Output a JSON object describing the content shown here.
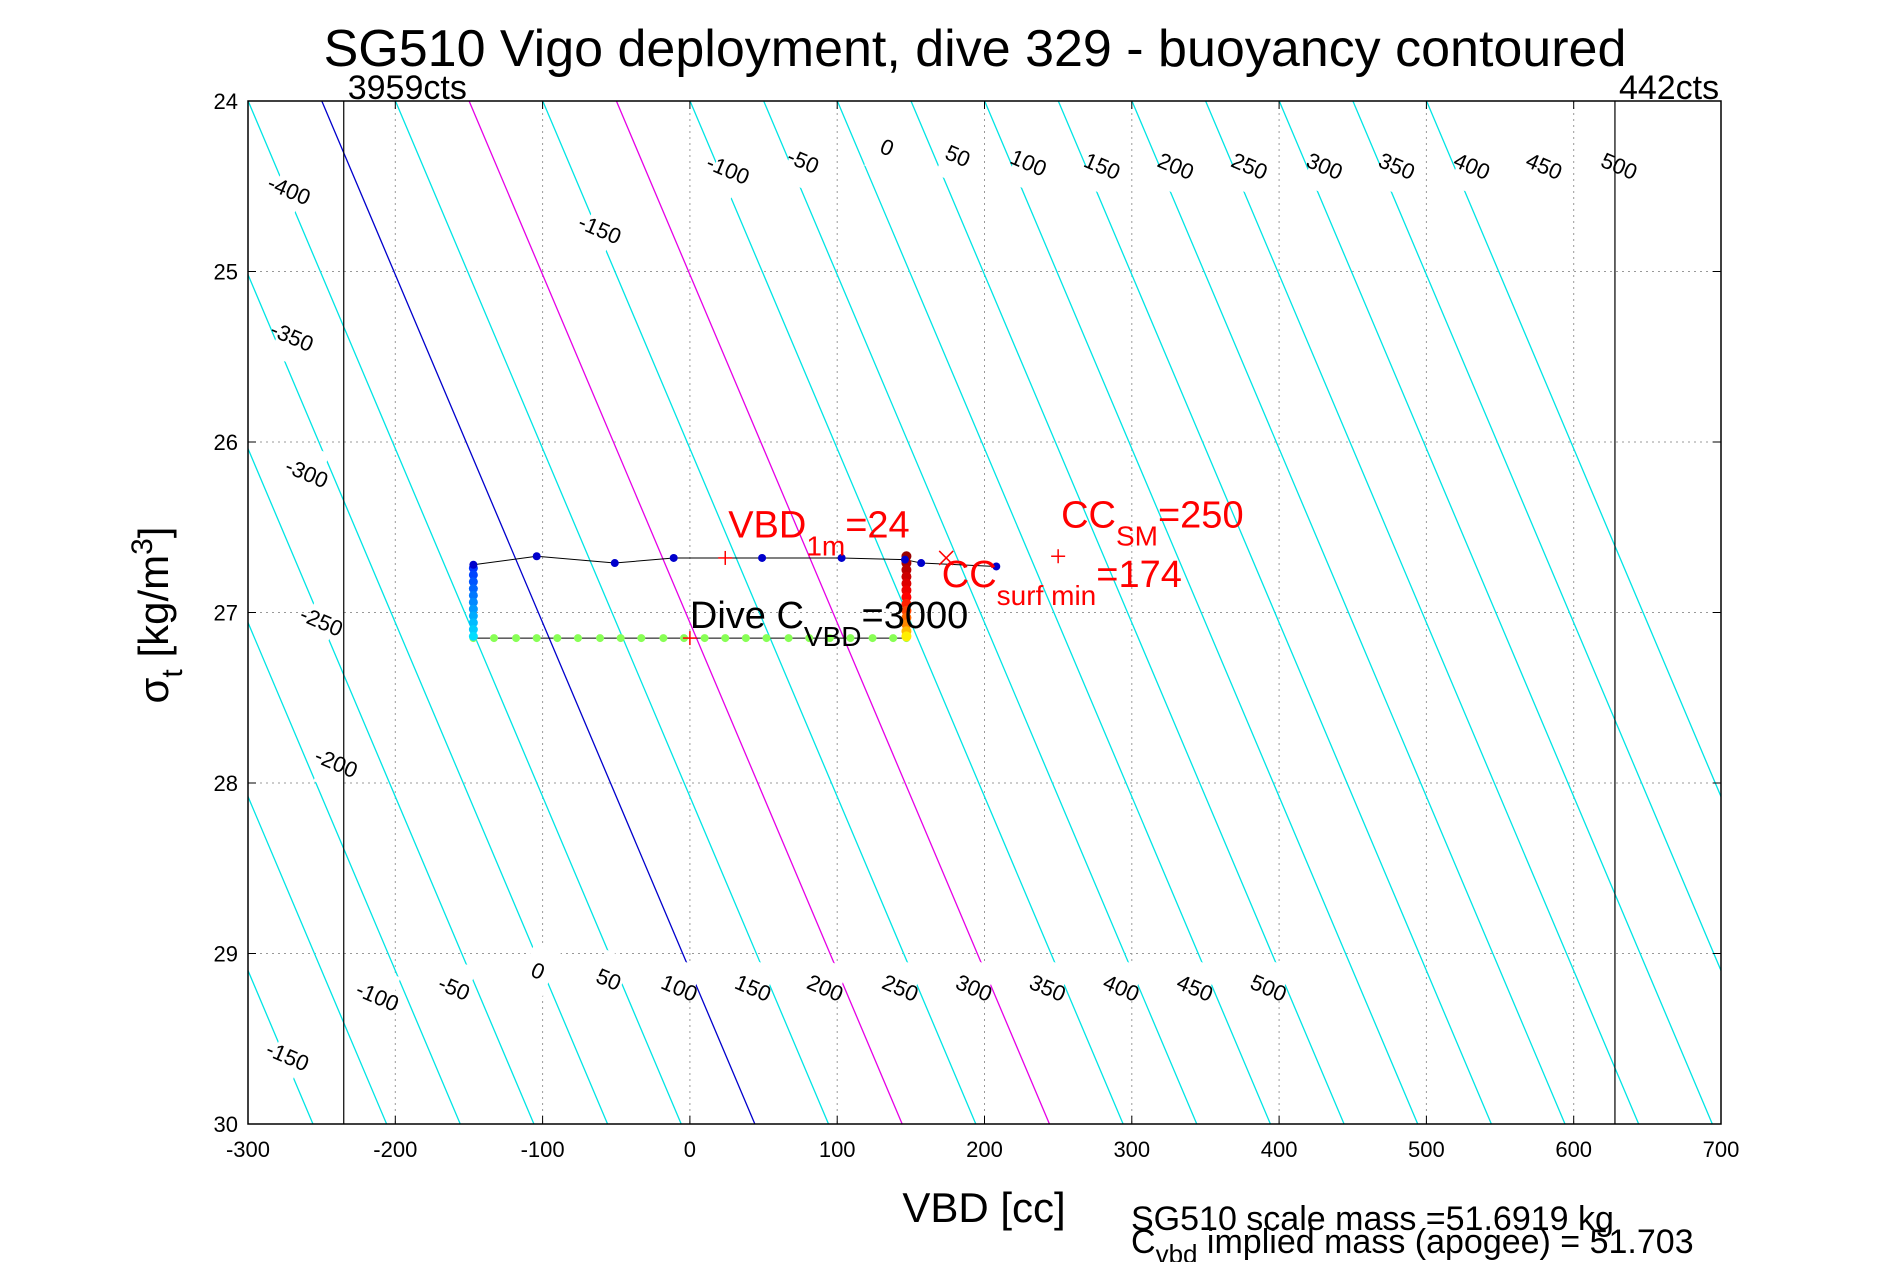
{
  "chart_data": {
    "type": "scatter",
    "title": "SG510 Vigo deployment, dive 329 - buoyancy contoured",
    "xlabel": "VBD [cc]",
    "ylabel": {
      "main": "σ",
      "sub": "t",
      "unit_pre": " [kg/m",
      "unit_sup": "3",
      "unit_post": "]"
    },
    "xlim": [
      -300,
      700
    ],
    "ylim": [
      30,
      24
    ],
    "y_reversed": true,
    "grid": "dotted",
    "xticks": [
      "-300",
      "-200",
      "-100",
      "0",
      "100",
      "200",
      "300",
      "400",
      "500",
      "600",
      "700"
    ],
    "yticks": [
      "24",
      "25",
      "26",
      "27",
      "28",
      "29",
      "30"
    ],
    "counts_limits": [
      {
        "x": -235,
        "label": "3959cts"
      },
      {
        "x": 628,
        "label": "442cts"
      }
    ],
    "contour_slope_cc_per_sigma": 49,
    "contour_ref_sigma": 29.1,
    "contours": [
      {
        "level": -400,
        "color": "#00e5e5"
      },
      {
        "level": -350,
        "color": "#00e5e5"
      },
      {
        "level": -300,
        "color": "#00e5e5"
      },
      {
        "level": -250,
        "color": "#00e5e5"
      },
      {
        "level": -200,
        "color": "#00e5e5"
      },
      {
        "level": -150,
        "color": "#00e5e5"
      },
      {
        "level": -100,
        "color": "#00e5e5"
      },
      {
        "level": -50,
        "color": "#00e5e5"
      },
      {
        "level": 0,
        "color": "#0000cc"
      },
      {
        "level": 50,
        "color": "#00e5e5"
      },
      {
        "level": 100,
        "color": "#e600e6"
      },
      {
        "level": 150,
        "color": "#00e5e5"
      },
      {
        "level": 200,
        "color": "#e600e6"
      },
      {
        "level": 250,
        "color": "#00e5e5"
      },
      {
        "level": 300,
        "color": "#00e5e5"
      },
      {
        "level": 350,
        "color": "#00e5e5"
      },
      {
        "level": 400,
        "color": "#00e5e5"
      },
      {
        "level": 450,
        "color": "#00e5e5"
      },
      {
        "level": 500,
        "color": "#00e5e5"
      },
      {
        "level": 550,
        "color": "#00e5e5"
      },
      {
        "level": 600,
        "color": "#00e5e5"
      },
      {
        "level": 650,
        "color": "#00e5e5"
      },
      {
        "level": 700,
        "color": "#00e5e5"
      },
      {
        "level": 750,
        "color": "#00e5e5"
      }
    ],
    "contour_labels_top": [
      {
        "text": "-400",
        "x": -272,
        "y": 24.52
      },
      {
        "text": "-150",
        "x": -61,
        "y": 24.75
      },
      {
        "text": "-100",
        "x": 26,
        "y": 24.4
      },
      {
        "text": "-50",
        "x": 77,
        "y": 24.35
      },
      {
        "text": "0",
        "x": 134,
        "y": 24.27
      },
      {
        "text": "50",
        "x": 182,
        "y": 24.32
      },
      {
        "text": "100",
        "x": 230,
        "y": 24.36
      },
      {
        "text": "150",
        "x": 280,
        "y": 24.38
      },
      {
        "text": "200",
        "x": 330,
        "y": 24.38
      },
      {
        "text": "250",
        "x": 380,
        "y": 24.38
      },
      {
        "text": "300",
        "x": 431,
        "y": 24.38
      },
      {
        "text": "350",
        "x": 480,
        "y": 24.38
      },
      {
        "text": "400",
        "x": 531,
        "y": 24.38
      },
      {
        "text": "450",
        "x": 580,
        "y": 24.38
      },
      {
        "text": "500",
        "x": 631,
        "y": 24.38
      }
    ],
    "contour_labels_left": [
      {
        "text": "-350",
        "x": -270,
        "y": 25.38
      },
      {
        "text": "-300",
        "x": -260,
        "y": 26.18
      },
      {
        "text": "-250",
        "x": -250,
        "y": 27.05
      },
      {
        "text": "-200",
        "x": -240,
        "y": 27.88
      },
      {
        "text": "-150",
        "x": -273,
        "y": 29.6
      }
    ],
    "contour_labels_bottom": [
      {
        "text": "-100",
        "x": -212,
        "y": 29.25
      },
      {
        "text": "-50",
        "x": -160,
        "y": 29.2
      },
      {
        "text": "0",
        "x": -103,
        "y": 29.1
      },
      {
        "text": "50",
        "x": -55,
        "y": 29.15
      },
      {
        "text": "100",
        "x": -7,
        "y": 29.2
      },
      {
        "text": "150",
        "x": 43,
        "y": 29.2
      },
      {
        "text": "200",
        "x": 92,
        "y": 29.2
      },
      {
        "text": "250",
        "x": 143,
        "y": 29.2
      },
      {
        "text": "300",
        "x": 193,
        "y": 29.2
      },
      {
        "text": "350",
        "x": 243,
        "y": 29.2
      },
      {
        "text": "400",
        "x": 293,
        "y": 29.2
      },
      {
        "text": "450",
        "x": 343,
        "y": 29.2
      },
      {
        "text": "500",
        "x": 393,
        "y": 29.2
      }
    ],
    "series": [
      {
        "kind": "trace_upper",
        "color": "#0000cc",
        "x": [
          -147,
          -104,
          -51,
          -11,
          49,
          103,
          146,
          157,
          208
        ],
        "y": [
          26.72,
          26.67,
          26.71,
          26.68,
          26.68,
          26.68,
          26.69,
          26.71,
          26.73
        ]
      },
      {
        "kind": "trace_lower",
        "color": "#88ff55",
        "x": [
          -147,
          -133,
          -118,
          -104,
          -90,
          -76,
          -61,
          -47,
          -33,
          -18,
          -4,
          10,
          24,
          38,
          52,
          67,
          81,
          95,
          109,
          124,
          138,
          147
        ],
        "y": [
          27.15,
          27.15,
          27.15,
          27.15,
          27.15,
          27.15,
          27.15,
          27.15,
          27.15,
          27.15,
          27.15,
          27.15,
          27.15,
          27.15,
          27.15,
          27.15,
          27.15,
          27.15,
          27.15,
          27.15,
          27.15,
          27.15
        ]
      },
      {
        "kind": "left_column",
        "x": -147,
        "y": [
          26.74,
          26.78,
          26.82,
          26.86,
          26.9,
          26.94,
          26.98,
          27.02,
          27.06,
          27.1,
          27.14
        ],
        "colors": [
          "#0033ff",
          "#0044ff",
          "#0055ff",
          "#0066ff",
          "#0077ff",
          "#0088ff",
          "#0099ff",
          "#00aaff",
          "#00bbff",
          "#00ccff",
          "#00ddff"
        ]
      },
      {
        "kind": "right_column",
        "x": 147,
        "y": [
          26.67,
          26.71,
          26.75,
          26.79,
          26.83,
          26.87,
          26.91,
          26.95,
          26.99,
          27.03,
          27.07,
          27.11,
          27.14
        ],
        "colors": [
          "#990000",
          "#aa0000",
          "#bb0000",
          "#cc0000",
          "#dd0000",
          "#ee0000",
          "#ff0000",
          "#ff2200",
          "#ff4400",
          "#ff6600",
          "#ff8800",
          "#ffbb00",
          "#ffee00"
        ]
      }
    ],
    "markers": [
      {
        "type": "plus",
        "x": 24,
        "y": 26.68,
        "color": "#ff0000"
      },
      {
        "type": "cross",
        "x": 174,
        "y": 26.68,
        "color": "#ff0000"
      },
      {
        "type": "plus",
        "x": 250,
        "y": 26.67,
        "color": "#ff0000"
      },
      {
        "type": "plus",
        "x": 0,
        "y": 27.15,
        "color": "#ff0000"
      }
    ],
    "annotations": [
      {
        "main": "VBD",
        "sub": "1m",
        "rest": "=24",
        "color": "#ff0000",
        "x": 26,
        "y": 26.56
      },
      {
        "main": "CC",
        "sub": "surf min",
        "rest": "=174",
        "color": "#ff0000",
        "x": 171,
        "y": 26.85
      },
      {
        "main": "CC",
        "sub": "SM",
        "rest": "=250",
        "color": "#ff0000",
        "x": 252,
        "y": 26.5
      },
      {
        "main": "Dive C",
        "sub": "VBD",
        "rest": "=3000",
        "color": "#000000",
        "x": 0,
        "y": 27.09
      }
    ]
  },
  "footer": {
    "line1": "SG510 scale mass =51.6919 kg",
    "line2_main": "C",
    "line2_sub": "vbd",
    "line2_rest": " implied mass (apogee) = 51.703"
  }
}
